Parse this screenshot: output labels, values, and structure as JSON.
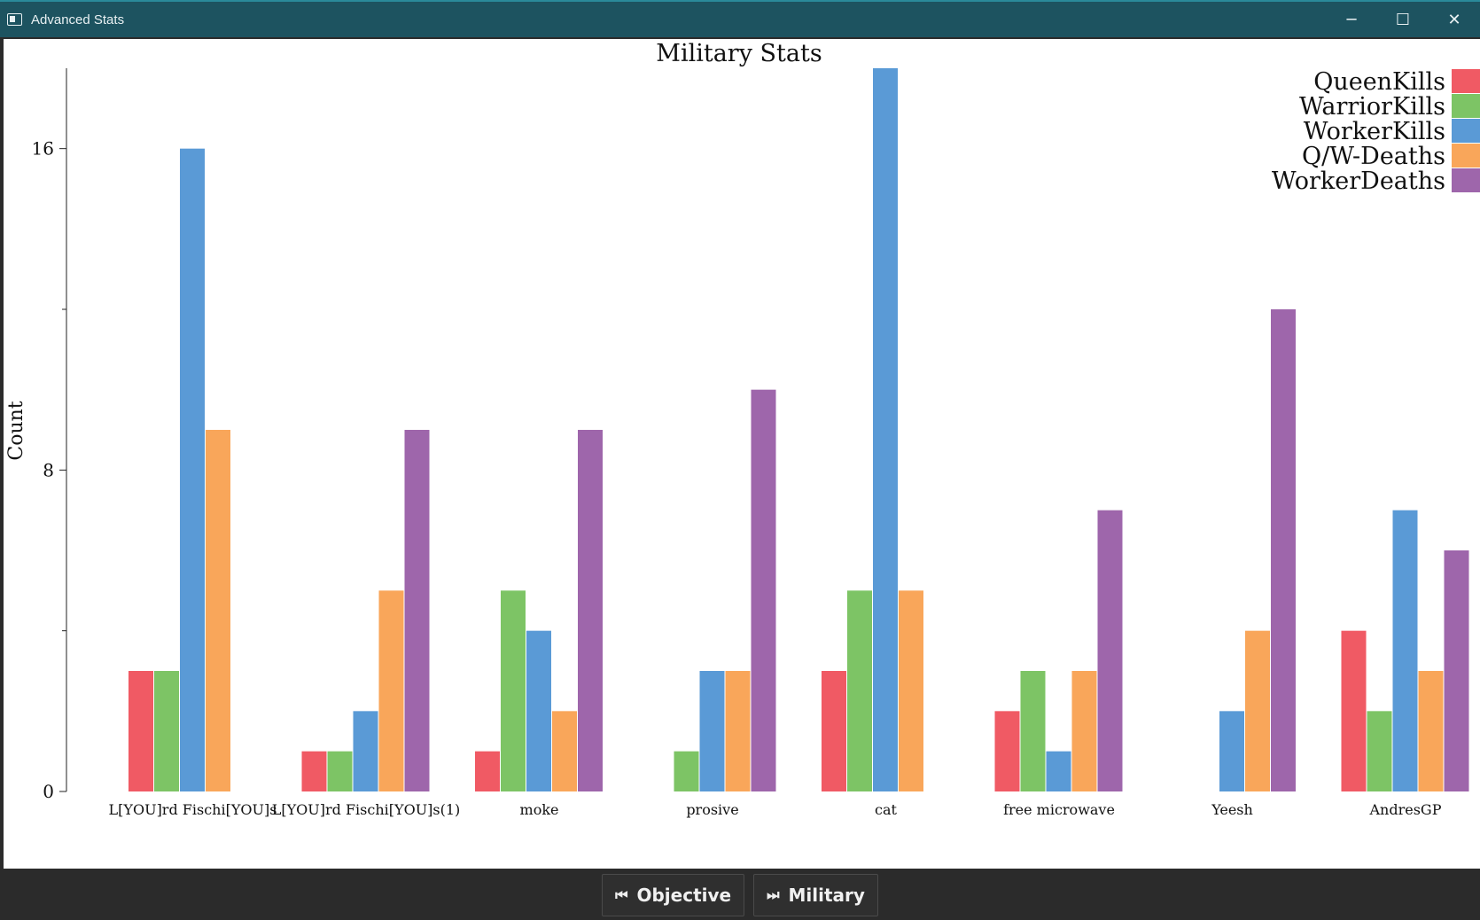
{
  "window": {
    "title": "Advanced Stats",
    "controls": {
      "minimize": "─",
      "maximize": "☐",
      "close": "✕"
    }
  },
  "footer": {
    "buttons": [
      {
        "label": "Objective",
        "icon": "skip-previous-icon",
        "glyph": "⏮"
      },
      {
        "label": "Military",
        "icon": "skip-next-icon",
        "glyph": "⏭"
      }
    ]
  },
  "chart_data": {
    "type": "bar",
    "title": "Military Stats",
    "xlabel": "",
    "ylabel": "Count",
    "ylim": [
      0,
      18
    ],
    "yticks": [
      0,
      8,
      16
    ],
    "yminor": [
      4,
      12
    ],
    "legend_position": "top-right",
    "grid": false,
    "categories": [
      "L[YOU]rd Fischi[YOU]s",
      "L[YOU]rd Fischi[YOU]s(1)",
      "moke",
      "prosive",
      "cat",
      "free microwave",
      "Yeesh",
      "AndresGP"
    ],
    "series": [
      {
        "name": "QueenKills",
        "color": "#f05a64",
        "values": [
          3,
          1,
          1,
          0,
          3,
          2,
          0,
          4
        ]
      },
      {
        "name": "WarriorKills",
        "color": "#7dc465",
        "values": [
          3,
          1,
          5,
          1,
          5,
          3,
          0,
          2
        ]
      },
      {
        "name": "WorkerKills",
        "color": "#5a9ad6",
        "values": [
          16,
          2,
          4,
          3,
          18,
          1,
          2,
          7
        ]
      },
      {
        "name": "Q/W-Deaths",
        "color": "#f9a65a",
        "values": [
          9,
          5,
          2,
          3,
          5,
          3,
          4,
          3
        ]
      },
      {
        "name": "WorkerDeaths",
        "color": "#9e66ab",
        "values": [
          0,
          9,
          9,
          10,
          0,
          7,
          12,
          6
        ]
      }
    ]
  }
}
